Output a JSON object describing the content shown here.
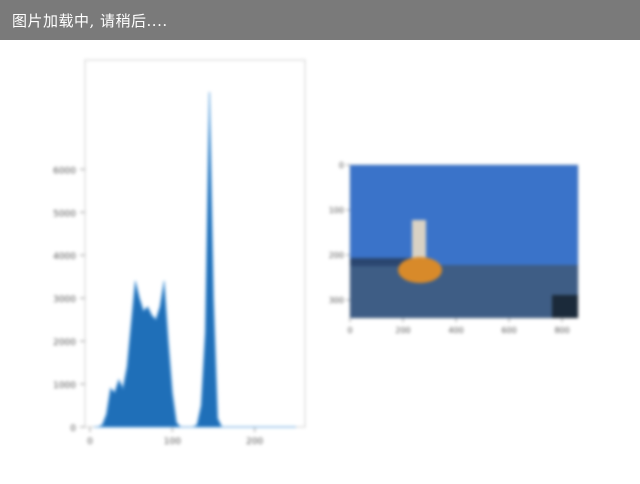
{
  "banner": {
    "loading_text": "图片加载中, 请稍后...."
  },
  "colors": {
    "banner_bg": "#7a7a7a",
    "histogram_fill": "#1f6fb8",
    "histogram_edge": "#5aa0dd",
    "sky": "#3a73c9",
    "sea": "#3e5d85",
    "buoy": "#d88a2a"
  },
  "chart_data": [
    {
      "type": "area",
      "title": "",
      "xlabel": "",
      "ylabel": "",
      "xlim": [
        0,
        255
      ],
      "ylim": [
        0,
        8500
      ],
      "x_ticks": [
        "0",
        "100",
        "200"
      ],
      "y_ticks": [
        "0",
        "1000",
        "2000",
        "3000",
        "4000",
        "5000",
        "6000"
      ],
      "grid": false,
      "series": [
        {
          "x": [
            5,
            10,
            15,
            20,
            25,
            30,
            35,
            40,
            45,
            50,
            55,
            60,
            65,
            70,
            75,
            80,
            85,
            90,
            95,
            100,
            105,
            110,
            115,
            120,
            125,
            130,
            135,
            140,
            145,
            150,
            155,
            160,
            165,
            170,
            175,
            180,
            185,
            190,
            195,
            200,
            205,
            210,
            215,
            220,
            225,
            230,
            235,
            240,
            245,
            250
          ],
          "values": [
            0,
            0,
            50,
            300,
            900,
            800,
            1100,
            900,
            1400,
            2400,
            3400,
            3000,
            2700,
            2800,
            2600,
            2500,
            2800,
            3400,
            2000,
            800,
            100,
            0,
            0,
            0,
            0,
            50,
            500,
            2200,
            7800,
            3000,
            200,
            0,
            0,
            0,
            0,
            0,
            0,
            0,
            0,
            0,
            0,
            0,
            0,
            0,
            0,
            0,
            0,
            0,
            0,
            0
          ]
        }
      ]
    },
    {
      "type": "image",
      "title": "",
      "x_ticks": [
        "0",
        "200",
        "400",
        "600",
        "800"
      ],
      "y_ticks": [
        "0",
        "100",
        "200",
        "300"
      ],
      "description_colors": [
        "sky",
        "sea",
        "buoy"
      ]
    }
  ]
}
